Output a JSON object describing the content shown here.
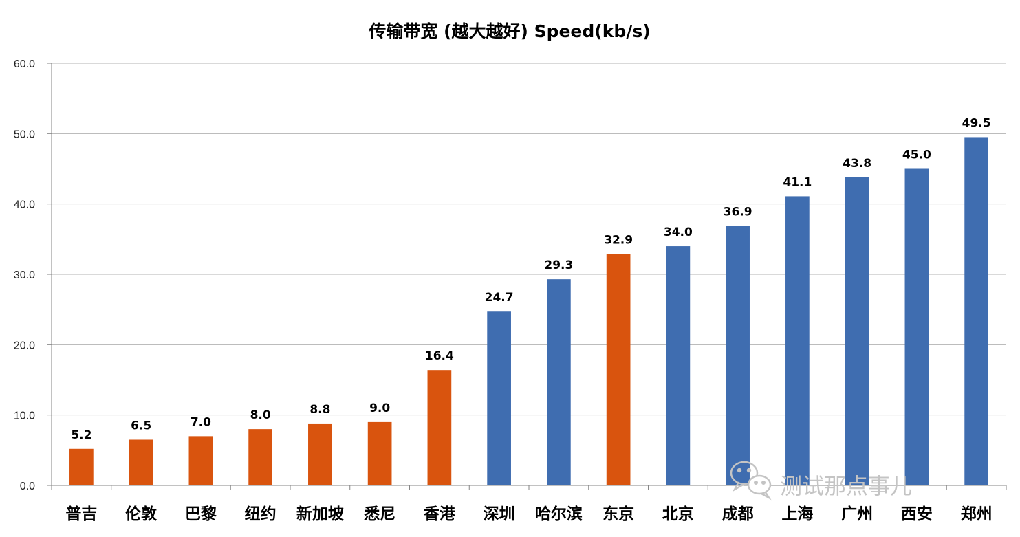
{
  "chart_data": {
    "type": "bar",
    "title": "传输带宽 (越大越好) Speed(kb/s)",
    "xlabel": "",
    "ylabel": "",
    "ylim": [
      0,
      60
    ],
    "yticks": [
      "0.0",
      "10.0",
      "20.0",
      "30.0",
      "40.0",
      "50.0",
      "60.0"
    ],
    "grid": true,
    "categories": [
      "普吉",
      "伦敦",
      "巴黎",
      "纽约",
      "新加坡",
      "悉尼",
      "香港",
      "深圳",
      "哈尔滨",
      "东京",
      "北京",
      "成都",
      "上海",
      "广州",
      "西安",
      "郑州"
    ],
    "values": [
      5.2,
      6.5,
      7.0,
      8.0,
      8.8,
      9.0,
      16.4,
      24.7,
      29.3,
      32.9,
      34.0,
      36.9,
      41.1,
      43.8,
      45.0,
      49.5
    ],
    "data_labels": [
      "5.2",
      "6.5",
      "7.0",
      "8.0",
      "8.8",
      "9.0",
      "16.4",
      "24.7",
      "29.3",
      "32.9",
      "34.0",
      "36.9",
      "41.1",
      "43.8",
      "45.0",
      "49.5"
    ],
    "bar_colors": [
      "#d9540e",
      "#d9540e",
      "#d9540e",
      "#d9540e",
      "#d9540e",
      "#d9540e",
      "#d9540e",
      "#3f6db0",
      "#3f6db0",
      "#d9540e",
      "#3f6db0",
      "#3f6db0",
      "#3f6db0",
      "#3f6db0",
      "#3f6db0",
      "#3f6db0"
    ]
  },
  "watermark": {
    "text": "测试那点事儿",
    "icon": "wechat-icon",
    "color": "#c4c4c4"
  }
}
